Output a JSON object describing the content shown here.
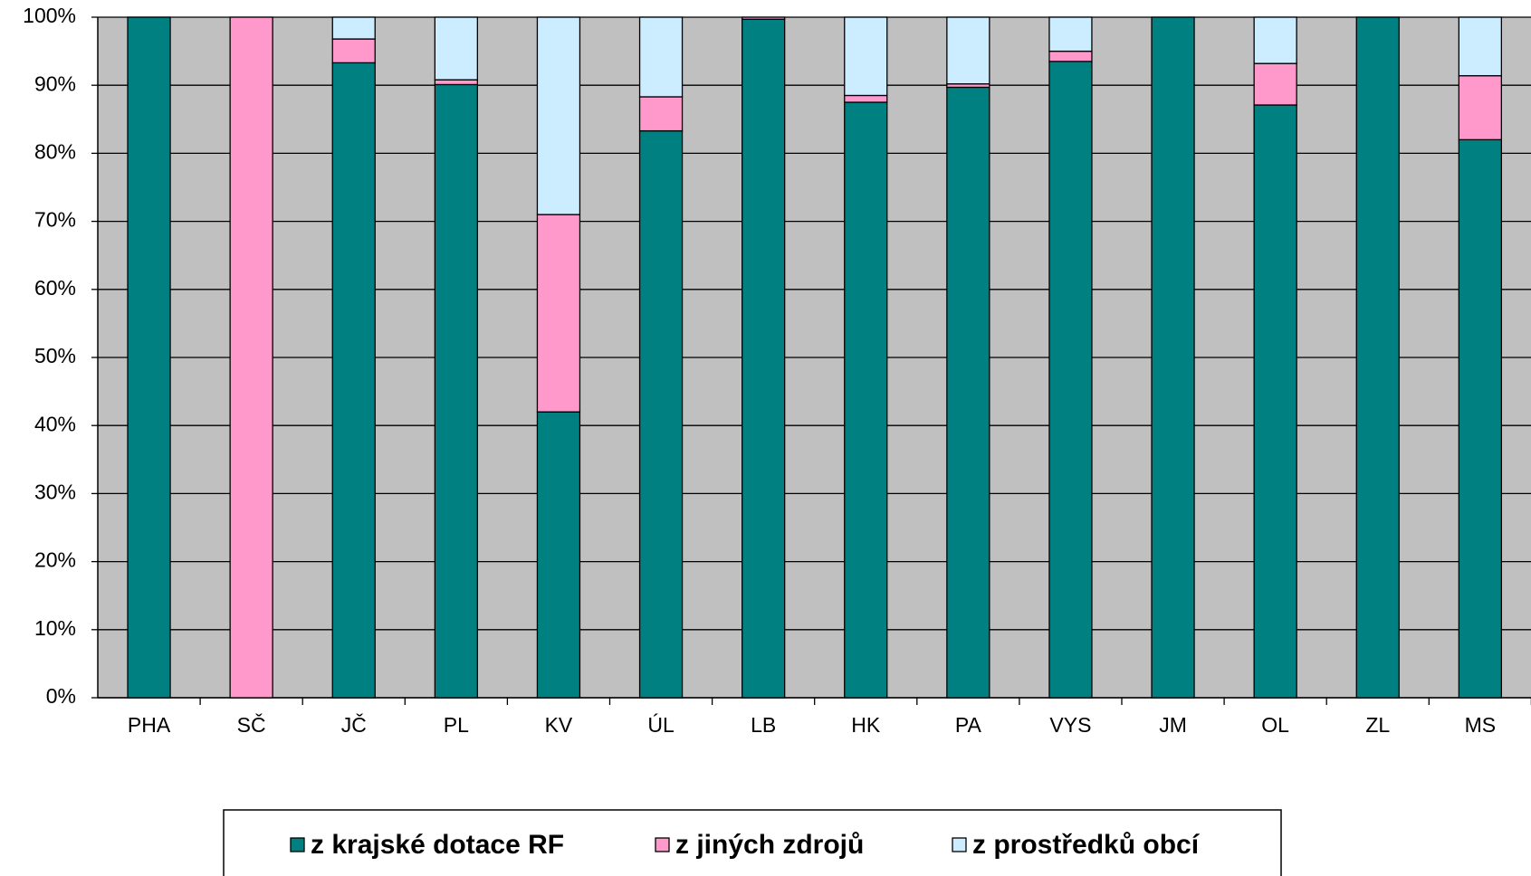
{
  "chart_data": {
    "type": "stacked_bar",
    "categories": [
      "PHA",
      "SČ",
      "JČ",
      "PL",
      "KV",
      "ÚL",
      "LB",
      "HK",
      "PA",
      "VYS",
      "JM",
      "OL",
      "ZL",
      "MS"
    ],
    "series": [
      {
        "name": "z krajské dotace RF",
        "color": "#008080",
        "values": [
          100,
          0,
          93.3,
          90.1,
          42,
          83.3,
          99.7,
          87.5,
          89.7,
          93.5,
          100,
          87.1,
          100,
          82
        ]
      },
      {
        "name": "z jiných zdrojů",
        "color": "#ff99cc",
        "values": [
          0,
          100,
          3.5,
          0.7,
          29,
          5,
          0.3,
          1,
          0.5,
          1.5,
          0,
          6.1,
          0,
          9.4
        ]
      },
      {
        "name": "z prostředků obcí",
        "color": "#ccecff",
        "values": [
          0,
          0,
          3.2,
          9.2,
          29,
          11.7,
          0,
          11.5,
          9.8,
          5,
          0,
          6.8,
          0,
          8.6
        ]
      }
    ],
    "ylim": [
      0,
      100
    ],
    "yticks": [
      {
        "value": 0,
        "label": "0%"
      },
      {
        "value": 10,
        "label": "10%"
      },
      {
        "value": 20,
        "label": "20%"
      },
      {
        "value": 30,
        "label": "30%"
      },
      {
        "value": 40,
        "label": "40%"
      },
      {
        "value": 50,
        "label": "50%"
      },
      {
        "value": 60,
        "label": "60%"
      },
      {
        "value": 70,
        "label": "70%"
      },
      {
        "value": 80,
        "label": "80%"
      },
      {
        "value": 90,
        "label": "90%"
      },
      {
        "value": 100,
        "label": "100%"
      }
    ],
    "grid": true,
    "legend": "bottom"
  }
}
